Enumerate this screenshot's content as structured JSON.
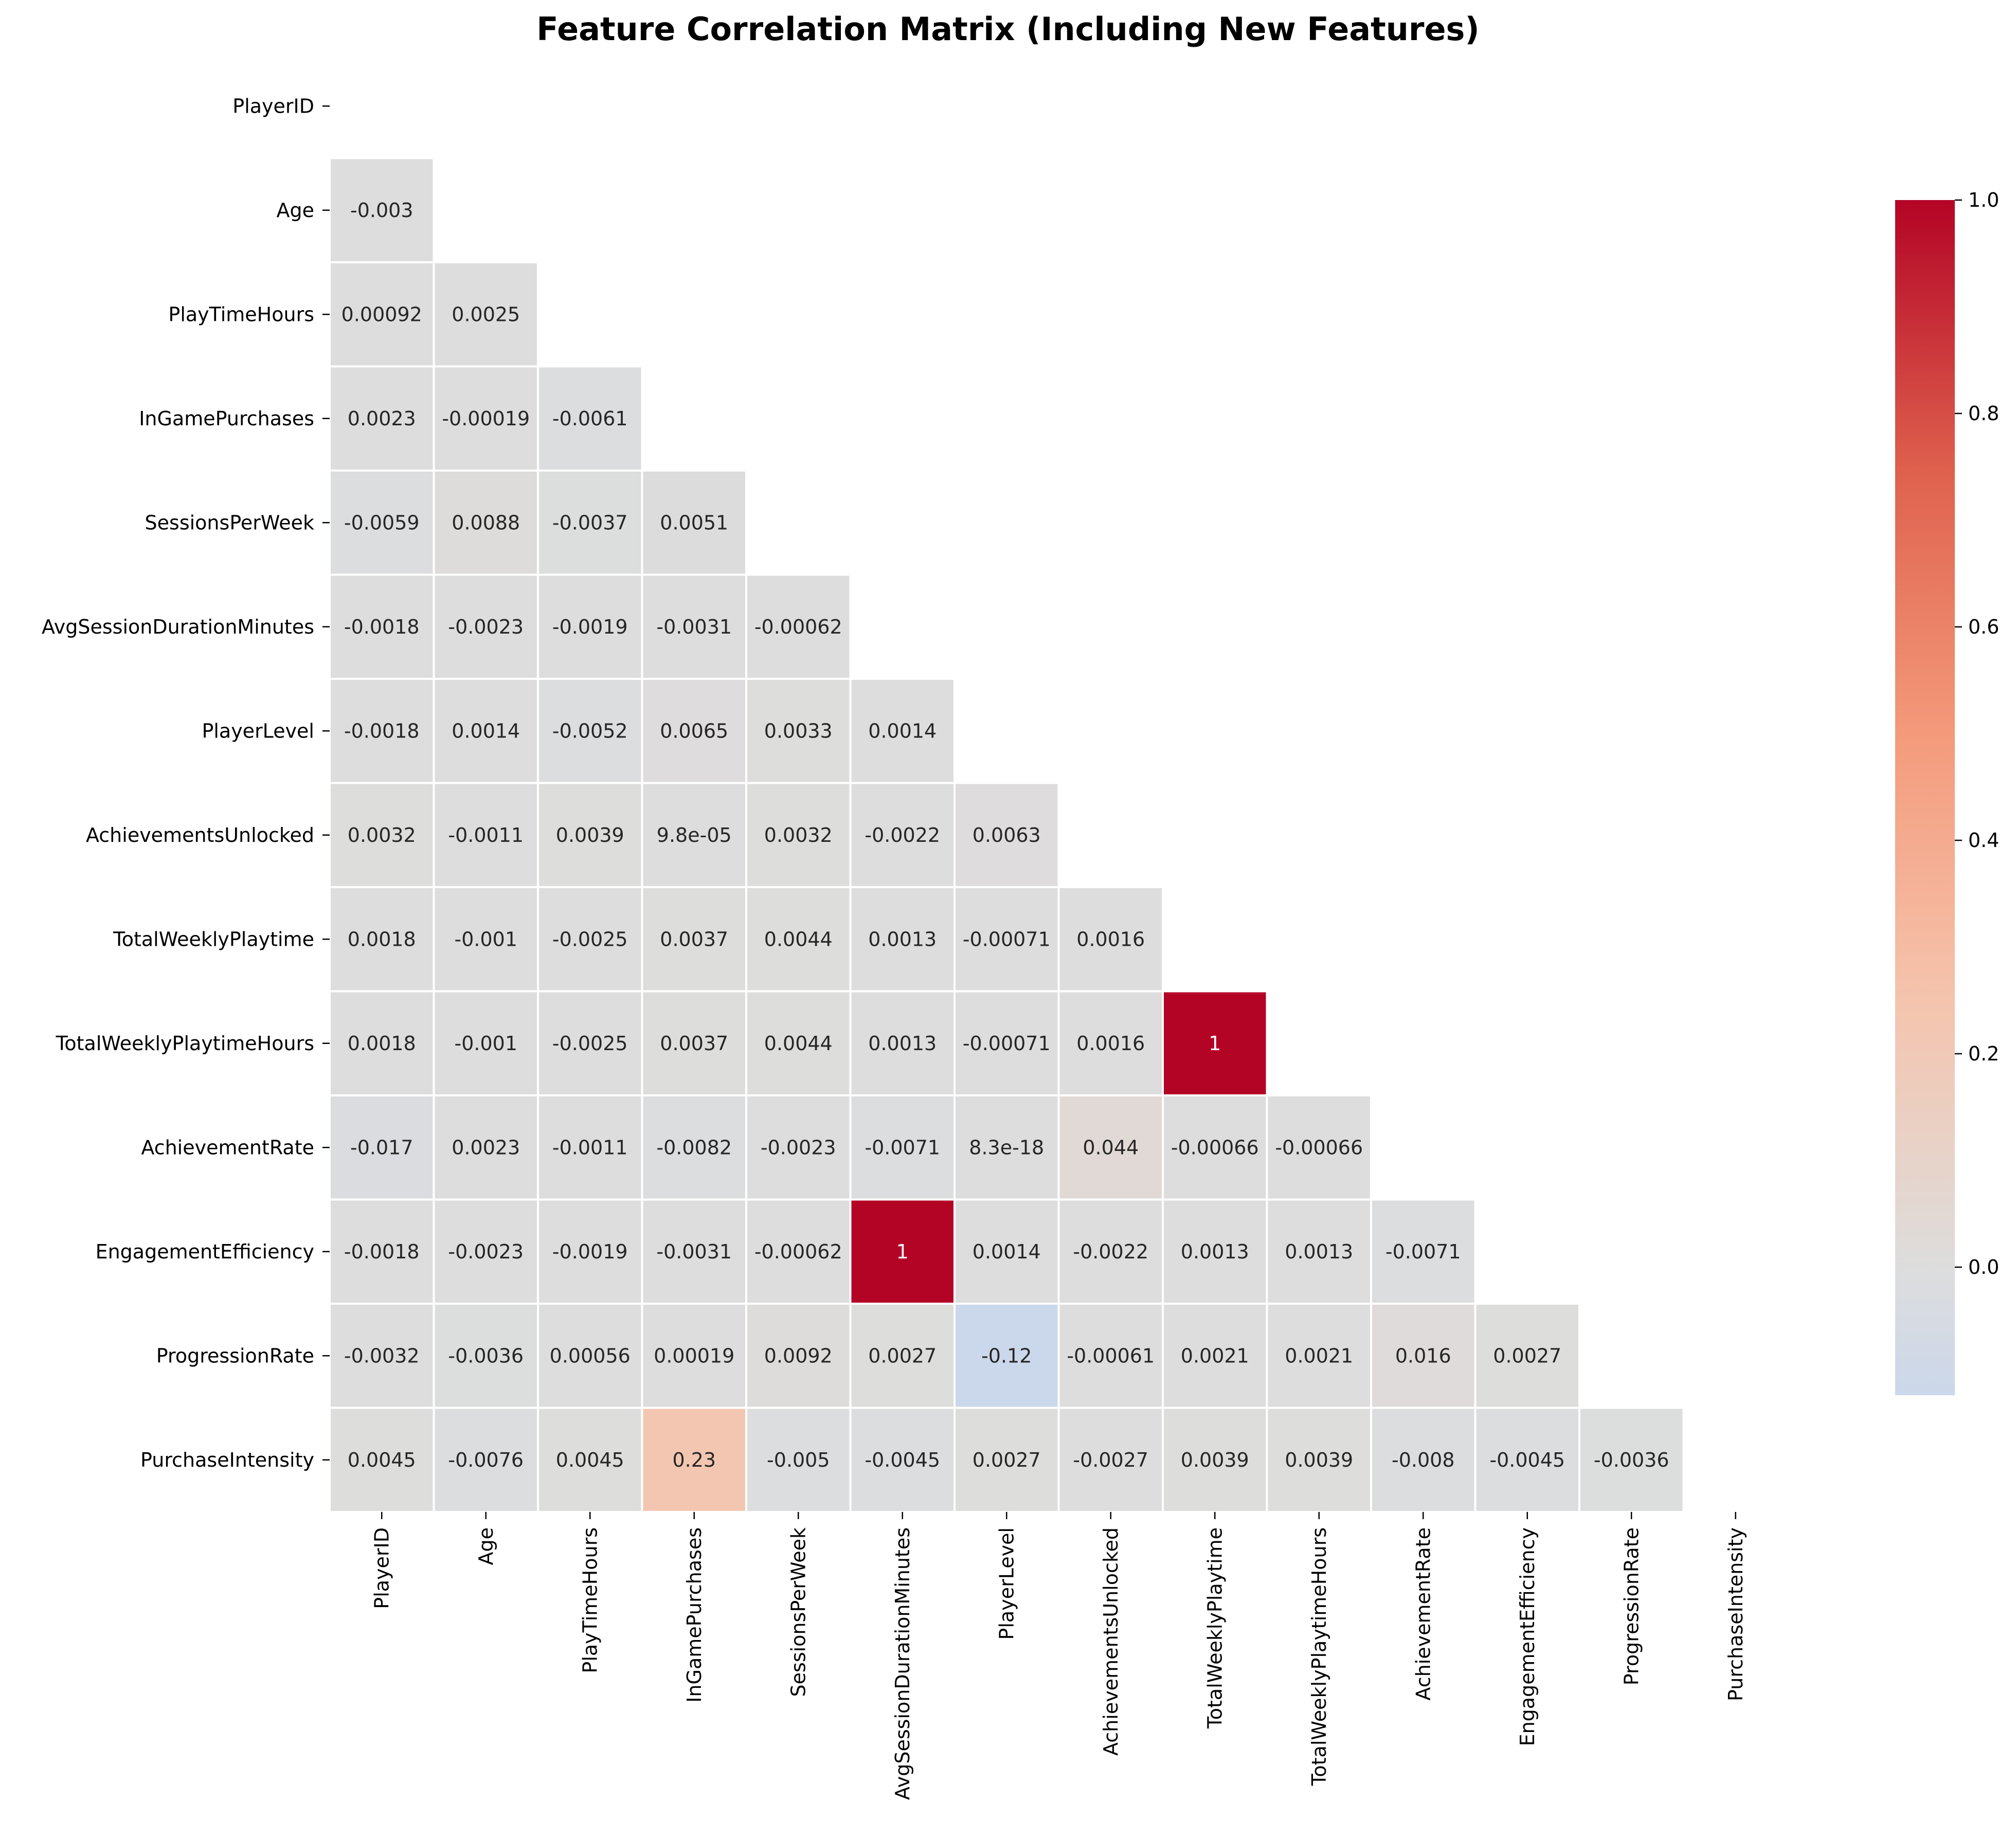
{
  "chart_data": {
    "type": "heatmap",
    "title": "Feature Correlation Matrix (Including New Features)",
    "mask": "upper-triangle-including-diagonal",
    "colormap": "coolwarm",
    "vmin": -0.12,
    "vmax": 1.0,
    "features": [
      "PlayerID",
      "Age",
      "PlayTimeHours",
      "InGamePurchases",
      "SessionsPerWeek",
      "AvgSessionDurationMinutes",
      "PlayerLevel",
      "AchievementsUnlocked",
      "TotalWeeklyPlaytime",
      "TotalWeeklyPlaytimeHours",
      "AchievementRate",
      "EngagementEfficiency",
      "ProgressionRate",
      "PurchaseIntensity"
    ],
    "rows": [
      [],
      [
        {
          "v": -0.003,
          "label": "-0.003"
        }
      ],
      [
        {
          "v": 0.00092,
          "label": "0.00092"
        },
        {
          "v": 0.0025,
          "label": "0.0025"
        }
      ],
      [
        {
          "v": 0.0023,
          "label": "0.0023"
        },
        {
          "v": -0.00019,
          "label": "-0.00019"
        },
        {
          "v": -0.0061,
          "label": "-0.0061"
        }
      ],
      [
        {
          "v": -0.0059,
          "label": "-0.0059"
        },
        {
          "v": 0.0088,
          "label": "0.0088"
        },
        {
          "v": -0.0037,
          "label": "-0.0037"
        },
        {
          "v": 0.0051,
          "label": "0.0051"
        }
      ],
      [
        {
          "v": -0.0018,
          "label": "-0.0018"
        },
        {
          "v": -0.0023,
          "label": "-0.0023"
        },
        {
          "v": -0.0019,
          "label": "-0.0019"
        },
        {
          "v": -0.0031,
          "label": "-0.0031"
        },
        {
          "v": -0.00062,
          "label": "-0.00062"
        }
      ],
      [
        {
          "v": -0.0018,
          "label": "-0.0018"
        },
        {
          "v": 0.0014,
          "label": "0.0014"
        },
        {
          "v": -0.0052,
          "label": "-0.0052"
        },
        {
          "v": 0.0065,
          "label": "0.0065"
        },
        {
          "v": 0.0033,
          "label": "0.0033"
        },
        {
          "v": 0.0014,
          "label": "0.0014"
        }
      ],
      [
        {
          "v": 0.0032,
          "label": "0.0032"
        },
        {
          "v": -0.0011,
          "label": "-0.0011"
        },
        {
          "v": 0.0039,
          "label": "0.0039"
        },
        {
          "v": 9.8e-05,
          "label": "9.8e-05"
        },
        {
          "v": 0.0032,
          "label": "0.0032"
        },
        {
          "v": -0.0022,
          "label": "-0.0022"
        },
        {
          "v": 0.0063,
          "label": "0.0063"
        }
      ],
      [
        {
          "v": 0.0018,
          "label": "0.0018"
        },
        {
          "v": -0.001,
          "label": "-0.001"
        },
        {
          "v": -0.0025,
          "label": "-0.0025"
        },
        {
          "v": 0.0037,
          "label": "0.0037"
        },
        {
          "v": 0.0044,
          "label": "0.0044"
        },
        {
          "v": 0.0013,
          "label": "0.0013"
        },
        {
          "v": -0.00071,
          "label": "-0.00071"
        },
        {
          "v": 0.0016,
          "label": "0.0016"
        }
      ],
      [
        {
          "v": 0.0018,
          "label": "0.0018"
        },
        {
          "v": -0.001,
          "label": "-0.001"
        },
        {
          "v": -0.0025,
          "label": "-0.0025"
        },
        {
          "v": 0.0037,
          "label": "0.0037"
        },
        {
          "v": 0.0044,
          "label": "0.0044"
        },
        {
          "v": 0.0013,
          "label": "0.0013"
        },
        {
          "v": -0.00071,
          "label": "-0.00071"
        },
        {
          "v": 0.0016,
          "label": "0.0016"
        },
        {
          "v": 1.0,
          "label": "1"
        }
      ],
      [
        {
          "v": -0.017,
          "label": "-0.017"
        },
        {
          "v": 0.0023,
          "label": "0.0023"
        },
        {
          "v": -0.0011,
          "label": "-0.0011"
        },
        {
          "v": -0.0082,
          "label": "-0.0082"
        },
        {
          "v": -0.0023,
          "label": "-0.0023"
        },
        {
          "v": -0.0071,
          "label": "-0.0071"
        },
        {
          "v": 8.3e-18,
          "label": "8.3e-18"
        },
        {
          "v": 0.044,
          "label": "0.044"
        },
        {
          "v": -0.00066,
          "label": "-0.00066"
        },
        {
          "v": -0.00066,
          "label": "-0.00066"
        }
      ],
      [
        {
          "v": -0.0018,
          "label": "-0.0018"
        },
        {
          "v": -0.0023,
          "label": "-0.0023"
        },
        {
          "v": -0.0019,
          "label": "-0.0019"
        },
        {
          "v": -0.0031,
          "label": "-0.0031"
        },
        {
          "v": -0.00062,
          "label": "-0.00062"
        },
        {
          "v": 1.0,
          "label": "1"
        },
        {
          "v": 0.0014,
          "label": "0.0014"
        },
        {
          "v": -0.0022,
          "label": "-0.0022"
        },
        {
          "v": 0.0013,
          "label": "0.0013"
        },
        {
          "v": 0.0013,
          "label": "0.0013"
        },
        {
          "v": -0.0071,
          "label": "-0.0071"
        }
      ],
      [
        {
          "v": -0.0032,
          "label": "-0.0032"
        },
        {
          "v": -0.0036,
          "label": "-0.0036"
        },
        {
          "v": 0.00056,
          "label": "0.00056"
        },
        {
          "v": 0.00019,
          "label": "0.00019"
        },
        {
          "v": 0.0092,
          "label": "0.0092"
        },
        {
          "v": 0.0027,
          "label": "0.0027"
        },
        {
          "v": -0.12,
          "label": "-0.12"
        },
        {
          "v": -0.00061,
          "label": "-0.00061"
        },
        {
          "v": 0.0021,
          "label": "0.0021"
        },
        {
          "v": 0.0021,
          "label": "0.0021"
        },
        {
          "v": 0.016,
          "label": "0.016"
        },
        {
          "v": 0.0027,
          "label": "0.0027"
        }
      ],
      [
        {
          "v": 0.0045,
          "label": "0.0045"
        },
        {
          "v": -0.0076,
          "label": "-0.0076"
        },
        {
          "v": 0.0045,
          "label": "0.0045"
        },
        {
          "v": 0.23,
          "label": "0.23"
        },
        {
          "v": -0.005,
          "label": "-0.005"
        },
        {
          "v": -0.0045,
          "label": "-0.0045"
        },
        {
          "v": 0.0027,
          "label": "0.0027"
        },
        {
          "v": -0.0027,
          "label": "-0.0027"
        },
        {
          "v": 0.0039,
          "label": "0.0039"
        },
        {
          "v": 0.0039,
          "label": "0.0039"
        },
        {
          "v": -0.008,
          "label": "-0.008"
        },
        {
          "v": -0.0045,
          "label": "-0.0045"
        },
        {
          "v": -0.0036,
          "label": "-0.0036"
        }
      ]
    ],
    "colorbar": {
      "ticks": [
        {
          "v": 0.0,
          "label": "0.0"
        },
        {
          "v": 0.2,
          "label": "0.2"
        },
        {
          "v": 0.4,
          "label": "0.4"
        },
        {
          "v": 0.6,
          "label": "0.6"
        },
        {
          "v": 0.8,
          "label": "0.8"
        },
        {
          "v": 1.0,
          "label": "1.0"
        }
      ]
    },
    "grid": "white cell borders",
    "legend": "colorbar-right"
  }
}
